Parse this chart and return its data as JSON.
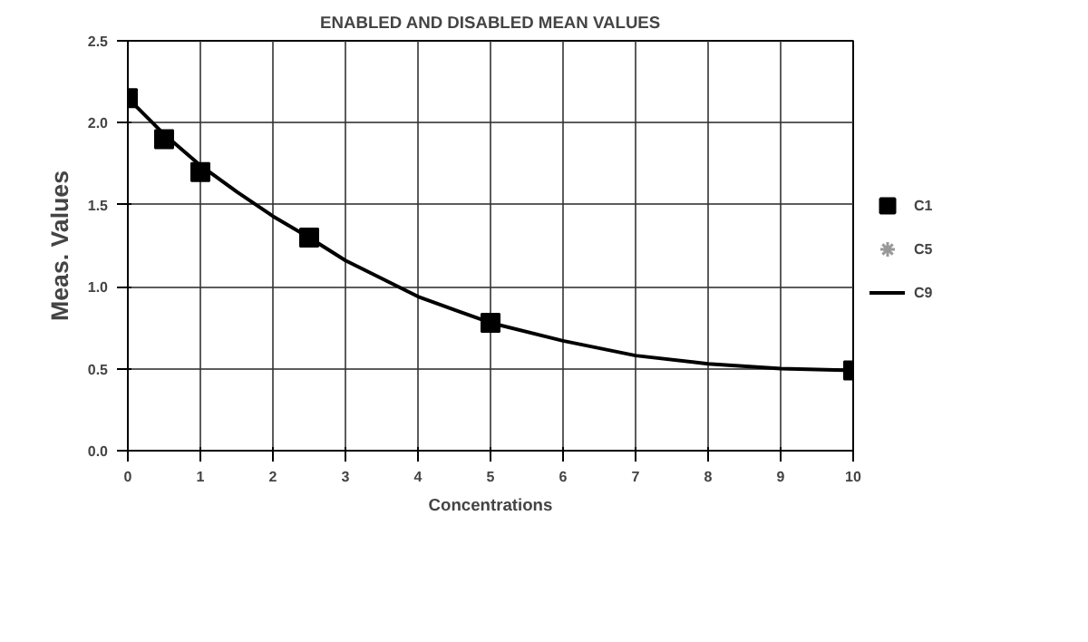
{
  "chart_data": {
    "type": "scatter",
    "title": "ENABLED AND DISABLED MEAN VALUES",
    "xlabel": "Concentrations",
    "ylabel": "Meas. Values",
    "xlim": [
      0,
      10
    ],
    "ylim": [
      0,
      2.5
    ],
    "xticks": [
      0,
      1,
      2,
      3,
      4,
      5,
      6,
      7,
      8,
      9,
      10
    ],
    "yticks": [
      {
        "value": 0,
        "label": "0.0"
      },
      {
        "value": 0.5,
        "label": "0.5"
      },
      {
        "value": 1,
        "label": "1.0"
      },
      {
        "value": 1.5,
        "label": "1.5"
      },
      {
        "value": 2,
        "label": "2.0"
      },
      {
        "value": 2.5,
        "label": "2.5"
      }
    ],
    "grid": true,
    "legend": "right",
    "series": [
      {
        "name": "C1",
        "marker": "square",
        "color": "#000000",
        "x": [
          0,
          0.5,
          1,
          2.5,
          5,
          10
        ],
        "values": [
          2.15,
          1.9,
          1.7,
          1.3,
          0.78,
          0.49
        ]
      },
      {
        "name": "C5",
        "type": "scatter",
        "marker": "star",
        "color": "#999999"
      },
      {
        "name": "C9",
        "type": "line",
        "marker": "none",
        "line_style": "solid",
        "color": "#000000",
        "x": [
          0,
          0.5,
          1,
          1.5,
          2,
          2.5,
          3,
          4,
          5,
          6,
          7,
          8,
          9,
          10
        ],
        "values": [
          2.15,
          1.93,
          1.74,
          1.58,
          1.43,
          1.3,
          1.16,
          0.94,
          0.78,
          0.67,
          0.58,
          0.53,
          0.5,
          0.49
        ]
      }
    ]
  }
}
